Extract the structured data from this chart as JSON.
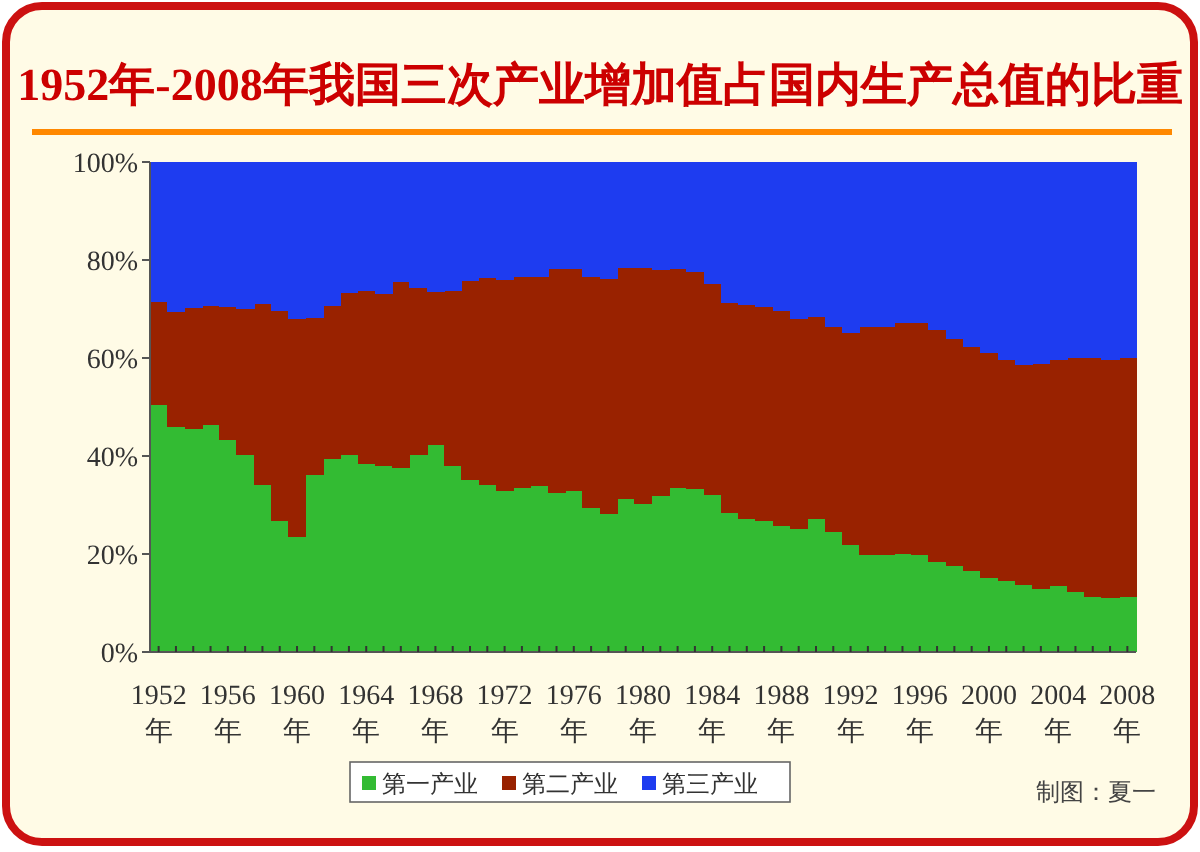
{
  "chart_data": {
    "type": "bar",
    "stacked": true,
    "title": "1952年-2008年我国三次产业增加值占国内生产总值的比重",
    "categories": [
      "1952\n年",
      null,
      null,
      null,
      "1956\n年",
      null,
      null,
      null,
      "1960\n年",
      null,
      null,
      null,
      "1964\n年",
      null,
      null,
      null,
      "1968\n年",
      null,
      null,
      null,
      "1972\n年",
      null,
      null,
      null,
      "1976\n年",
      null,
      null,
      null,
      "1980\n年",
      null,
      null,
      null,
      "1984\n年",
      null,
      null,
      null,
      "1988\n年",
      null,
      null,
      null,
      "1992\n年",
      null,
      null,
      null,
      "1996\n年",
      null,
      null,
      null,
      "2000\n年",
      null,
      null,
      null,
      "2004\n年",
      null,
      null,
      null,
      "2008\n年"
    ],
    "series": [
      {
        "name": "第一产业",
        "color": "#33bb33",
        "values": [
          50.5,
          45.9,
          45.6,
          46.3,
          43.2,
          40.3,
          34.1,
          26.7,
          23.4,
          36.2,
          39.4,
          40.3,
          38.4,
          37.9,
          37.6,
          40.3,
          42.2,
          38.0,
          35.2,
          34.1,
          32.9,
          33.4,
          33.9,
          32.4,
          32.8,
          29.4,
          28.2,
          31.3,
          30.2,
          31.9,
          33.4,
          33.2,
          32.1,
          28.4,
          27.2,
          26.8,
          25.7,
          25.1,
          27.1,
          24.5,
          21.8,
          19.7,
          19.8,
          19.9,
          19.7,
          18.3,
          17.6,
          16.5,
          15.1,
          14.4,
          13.7,
          12.8,
          13.4,
          12.2,
          11.3,
          11.1,
          11.3
        ]
      },
      {
        "name": "第二产业",
        "color": "#992200",
        "values": [
          20.9,
          23.4,
          24.6,
          24.4,
          27.3,
          29.7,
          37.0,
          42.8,
          44.5,
          31.9,
          31.3,
          33.0,
          35.3,
          35.1,
          38.0,
          34.0,
          31.2,
          35.6,
          40.5,
          42.2,
          43.1,
          43.1,
          42.7,
          45.7,
          45.4,
          47.1,
          47.9,
          47.1,
          48.2,
          46.1,
          44.8,
          44.4,
          43.1,
          42.9,
          43.7,
          43.6,
          43.8,
          42.8,
          41.3,
          41.8,
          43.4,
          46.6,
          46.6,
          47.2,
          47.5,
          47.5,
          46.2,
          45.8,
          45.9,
          45.1,
          44.8,
          46.0,
          46.2,
          47.7,
          48.7,
          48.5,
          48.6
        ]
      },
      {
        "name": "第三产业",
        "color": "#1e3cf0",
        "values": [
          28.6,
          30.7,
          29.8,
          29.3,
          29.5,
          30.0,
          28.9,
          30.5,
          32.1,
          31.9,
          29.3,
          26.7,
          26.3,
          27.0,
          24.4,
          25.7,
          26.6,
          26.4,
          24.3,
          23.7,
          24.0,
          23.5,
          23.4,
          21.9,
          21.8,
          23.5,
          23.9,
          21.6,
          21.6,
          22.0,
          21.8,
          22.4,
          24.8,
          28.7,
          29.1,
          29.6,
          30.5,
          32.1,
          31.6,
          33.7,
          34.8,
          33.7,
          33.6,
          32.9,
          32.8,
          34.2,
          36.2,
          37.7,
          39.0,
          40.5,
          41.5,
          41.2,
          40.4,
          40.1,
          40.0,
          40.4,
          40.1
        ]
      }
    ],
    "ylim": [
      0,
      100
    ],
    "yticks": [
      {
        "value": 0,
        "label": "0%"
      },
      {
        "value": 20,
        "label": "20%"
      },
      {
        "value": 40,
        "label": "40%"
      },
      {
        "value": 60,
        "label": "60%"
      },
      {
        "value": 80,
        "label": "80%"
      },
      {
        "value": 100,
        "label": "100%"
      }
    ],
    "legend": "bottom",
    "annotations": [
      "制图：夏一"
    ]
  }
}
